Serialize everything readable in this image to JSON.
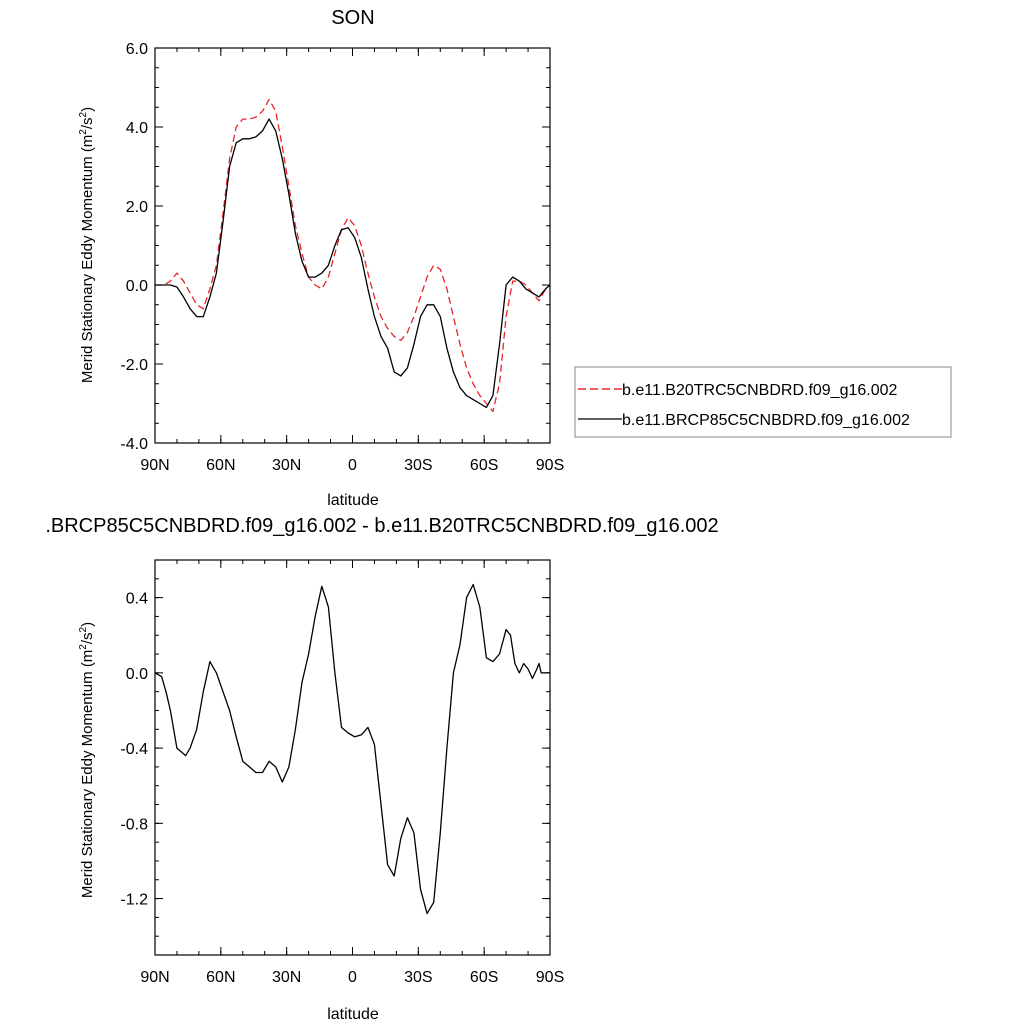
{
  "chart_data": [
    {
      "type": "line",
      "title": "SON",
      "xlabel": "latitude",
      "ylabel_main": "Merid Stationary Eddy Momentum (m",
      "ylabel_sup1": "2",
      "ylabel_mid": "/s",
      "ylabel_sup2": "2",
      "ylabel_end": ")",
      "xlim": [
        90,
        -90
      ],
      "ylim": [
        -4,
        6
      ],
      "x_ticks": [
        {
          "value": 90,
          "label": "90N"
        },
        {
          "value": 60,
          "label": "60N"
        },
        {
          "value": 30,
          "label": "30N"
        },
        {
          "value": 0,
          "label": "0"
        },
        {
          "value": -30,
          "label": "30S"
        },
        {
          "value": -60,
          "label": "60S"
        },
        {
          "value": -90,
          "label": "90S"
        }
      ],
      "y_ticks": [
        {
          "value": 6,
          "label": "6.0"
        },
        {
          "value": 4,
          "label": "4.0"
        },
        {
          "value": 2,
          "label": "2.0"
        },
        {
          "value": 0,
          "label": "0.0"
        },
        {
          "value": -2,
          "label": "-2.0"
        },
        {
          "value": -4,
          "label": "-4.0"
        }
      ],
      "legend": "right",
      "series": [
        {
          "name": "b.e11.B20TRC5CNBDRD.f09_g16.002",
          "color": "#e8242a",
          "dashed": true,
          "x": [
            90,
            86,
            83,
            80,
            77,
            74,
            71,
            68,
            65,
            62,
            59,
            56,
            53,
            50,
            47,
            44,
            41,
            38,
            35,
            32,
            29,
            26,
            23,
            20,
            17,
            14,
            11,
            8,
            5,
            2,
            -1,
            -4,
            -7,
            -10,
            -13,
            -16,
            -19,
            -22,
            -25,
            -28,
            -31,
            -34,
            -37,
            -40,
            -43,
            -46,
            -49,
            -52,
            -55,
            -58,
            -61,
            -64,
            -67,
            -70,
            -73,
            -76,
            -79,
            -82,
            -85,
            -88,
            -90
          ],
          "y": [
            0.0,
            0.0,
            0.1,
            0.3,
            0.1,
            -0.2,
            -0.5,
            -0.6,
            -0.1,
            0.5,
            1.8,
            3.2,
            4.0,
            4.2,
            4.2,
            4.25,
            4.4,
            4.7,
            4.4,
            3.5,
            2.5,
            1.5,
            0.8,
            0.2,
            0.0,
            -0.1,
            0.2,
            0.8,
            1.4,
            1.7,
            1.5,
            1.0,
            0.3,
            -0.3,
            -0.8,
            -1.1,
            -1.3,
            -1.4,
            -1.2,
            -0.8,
            -0.3,
            0.2,
            0.5,
            0.4,
            -0.1,
            -0.8,
            -1.5,
            -2.1,
            -2.5,
            -2.8,
            -3.0,
            -3.2,
            -2.5,
            -0.8,
            0.1,
            0.1,
            0.0,
            -0.2,
            -0.4,
            -0.1,
            0.0
          ]
        },
        {
          "name": "b.e11.BRCP85C5CNBDRD.f09_g16.002",
          "color": "#000000",
          "dashed": false,
          "x": [
            90,
            86,
            83,
            80,
            77,
            74,
            71,
            68,
            65,
            62,
            59,
            56,
            53,
            50,
            47,
            44,
            41,
            38,
            35,
            32,
            29,
            26,
            23,
            20,
            17,
            14,
            11,
            8,
            5,
            2,
            -1,
            -4,
            -7,
            -10,
            -13,
            -16,
            -19,
            -22,
            -25,
            -28,
            -31,
            -34,
            -37,
            -40,
            -43,
            -46,
            -49,
            -52,
            -55,
            -58,
            -61,
            -64,
            -67,
            -70,
            -73,
            -76,
            -79,
            -82,
            -85,
            -88,
            -90
          ],
          "y": [
            0.0,
            0.0,
            0.0,
            -0.05,
            -0.3,
            -0.6,
            -0.8,
            -0.8,
            -0.3,
            0.3,
            1.6,
            3.0,
            3.6,
            3.7,
            3.7,
            3.75,
            3.9,
            4.2,
            3.9,
            3.2,
            2.3,
            1.3,
            0.6,
            0.2,
            0.2,
            0.3,
            0.5,
            1.0,
            1.4,
            1.45,
            1.2,
            0.7,
            -0.1,
            -0.8,
            -1.3,
            -1.6,
            -2.2,
            -2.3,
            -2.1,
            -1.5,
            -0.8,
            -0.5,
            -0.5,
            -0.8,
            -1.6,
            -2.2,
            -2.6,
            -2.8,
            -2.9,
            -3.0,
            -3.1,
            -2.8,
            -1.5,
            0.0,
            0.2,
            0.1,
            -0.1,
            -0.2,
            -0.3,
            -0.1,
            0.0
          ]
        }
      ]
    },
    {
      "type": "line",
      "title": ".BRCP85C5CNBDRD.f09_g16.002 - b.e11.B20TRC5CNBDRD.f09_g16.002",
      "xlabel": "latitude",
      "ylabel_main": "Merid Stationary Eddy Momentum (m",
      "ylabel_sup1": "2",
      "ylabel_mid": "/s",
      "ylabel_sup2": "2",
      "ylabel_end": ")",
      "xlim": [
        90,
        -90
      ],
      "ylim": [
        -1.5,
        0.6
      ],
      "x_ticks": [
        {
          "value": 90,
          "label": "90N"
        },
        {
          "value": 60,
          "label": "60N"
        },
        {
          "value": 30,
          "label": "30N"
        },
        {
          "value": 0,
          "label": "0"
        },
        {
          "value": -30,
          "label": "30S"
        },
        {
          "value": -60,
          "label": "60S"
        },
        {
          "value": -90,
          "label": "90S"
        }
      ],
      "y_ticks": [
        {
          "value": 0.4,
          "label": "0.4"
        },
        {
          "value": 0.0,
          "label": "0.0"
        },
        {
          "value": -0.4,
          "label": "-0.4"
        },
        {
          "value": -0.8,
          "label": "-0.8"
        },
        {
          "value": -1.2,
          "label": "-1.2"
        }
      ],
      "series": [
        {
          "color": "#000000",
          "dashed": false,
          "x": [
            90,
            87,
            85,
            83,
            80,
            78,
            76,
            74,
            71,
            68,
            65,
            62,
            59,
            56,
            53,
            50,
            47,
            44,
            41,
            38,
            35,
            32,
            29,
            26,
            23,
            20,
            17,
            14,
            11,
            8,
            5,
            2,
            -1,
            -4,
            -7,
            -10,
            -13,
            -16,
            -19,
            -22,
            -25,
            -28,
            -31,
            -34,
            -37,
            -40,
            -43,
            -46,
            -49,
            -52,
            -55,
            -58,
            -61,
            -64,
            -67,
            -70,
            -72,
            -74,
            -76,
            -78,
            -80,
            -82,
            -84,
            -85,
            -86,
            -87,
            -88,
            -89,
            -90
          ],
          "y": [
            0.0,
            -0.02,
            -0.1,
            -0.2,
            -0.4,
            -0.42,
            -0.44,
            -0.4,
            -0.3,
            -0.1,
            0.06,
            0.0,
            -0.1,
            -0.2,
            -0.34,
            -0.47,
            -0.5,
            -0.53,
            -0.53,
            -0.47,
            -0.5,
            -0.58,
            -0.5,
            -0.3,
            -0.05,
            0.1,
            0.3,
            0.46,
            0.35,
            0.0,
            -0.29,
            -0.32,
            -0.34,
            -0.33,
            -0.29,
            -0.38,
            -0.7,
            -1.02,
            -1.08,
            -0.88,
            -0.77,
            -0.85,
            -1.15,
            -1.28,
            -1.22,
            -0.85,
            -0.4,
            0.0,
            0.15,
            0.4,
            0.47,
            0.35,
            0.08,
            0.06,
            0.1,
            0.23,
            0.2,
            0.05,
            0.0,
            0.05,
            0.02,
            -0.03,
            0.02,
            0.05,
            0.0,
            0.0,
            0.0,
            0.0,
            0.0
          ]
        }
      ]
    }
  ]
}
